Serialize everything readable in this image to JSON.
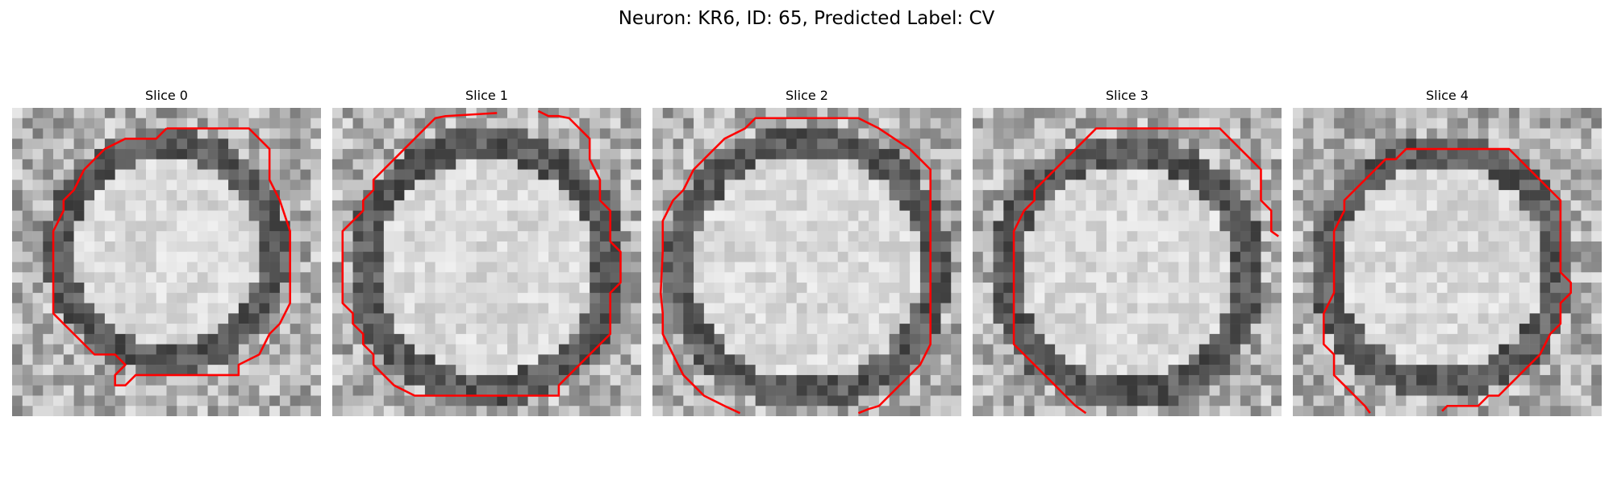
{
  "figure": {
    "title": "Neuron: KR6, ID: 65, Predicted Label: CV"
  },
  "colors": {
    "contour": "#ff0000",
    "background": "#ffffff"
  },
  "image_grid": 30,
  "panels": [
    {
      "title": "Slice 0",
      "seed": 11,
      "blob": {
        "cx": 15,
        "cy": 14,
        "r": 10.5
      },
      "contour": [
        [
          15,
          2
        ],
        [
          23,
          2
        ],
        [
          25,
          4
        ],
        [
          25,
          7
        ],
        [
          26,
          9
        ],
        [
          27,
          12
        ],
        [
          27,
          19
        ],
        [
          26,
          21
        ],
        [
          25,
          22
        ],
        [
          24,
          24
        ],
        [
          22,
          25
        ],
        [
          22,
          26
        ],
        [
          12,
          26
        ],
        [
          11,
          27
        ],
        [
          10,
          27
        ],
        [
          10,
          26
        ],
        [
          11,
          25
        ],
        [
          10,
          24
        ],
        [
          8,
          24
        ],
        [
          6,
          22
        ],
        [
          5,
          21
        ],
        [
          4,
          20
        ],
        [
          4,
          12
        ],
        [
          5,
          10
        ],
        [
          5,
          9
        ],
        [
          6,
          8
        ],
        [
          7,
          6
        ],
        [
          8,
          5
        ],
        [
          9,
          4
        ],
        [
          11,
          3
        ],
        [
          14,
          3
        ],
        [
          15,
          2
        ]
      ]
    },
    {
      "title": "Slice 1",
      "seed": 23,
      "blob": {
        "cx": 15,
        "cy": 15.5,
        "r": 12
      },
      "contour": [
        [
          16,
          0.5
        ],
        [
          11,
          0.8
        ],
        [
          10,
          1
        ],
        [
          9,
          2
        ],
        [
          8,
          3
        ],
        [
          7,
          4
        ],
        [
          5,
          6
        ],
        [
          4,
          7
        ],
        [
          4,
          8
        ],
        [
          3,
          9
        ],
        [
          3,
          10
        ],
        [
          2,
          11
        ],
        [
          1,
          12
        ],
        [
          1,
          15
        ],
        [
          1,
          18
        ],
        [
          1,
          19
        ],
        [
          2,
          20
        ],
        [
          2,
          21
        ],
        [
          3,
          22
        ],
        [
          3,
          23
        ],
        [
          4,
          24
        ],
        [
          4,
          25
        ],
        [
          5,
          26
        ],
        [
          6,
          27
        ],
        [
          8,
          28
        ],
        [
          22,
          28
        ],
        [
          22,
          27
        ],
        [
          23,
          26
        ],
        [
          24,
          25
        ],
        [
          25,
          24
        ],
        [
          26,
          23
        ],
        [
          27,
          22
        ],
        [
          27,
          18
        ],
        [
          28,
          17
        ],
        [
          28,
          14
        ],
        [
          27,
          13
        ],
        [
          27,
          10
        ],
        [
          26,
          9
        ],
        [
          26,
          7
        ],
        [
          25,
          5
        ],
        [
          25,
          3
        ],
        [
          23,
          1
        ],
        [
          22,
          0.8
        ],
        [
          21,
          0.8
        ],
        [
          20,
          0.3
        ]
      ]
    },
    {
      "title": "Slice 2",
      "seed": 37,
      "blob": {
        "cx": 15,
        "cy": 15.5,
        "r": 12.5
      },
      "contour": [
        [
          8.5,
          29.7
        ],
        [
          7,
          29
        ],
        [
          5,
          28
        ],
        [
          4,
          27
        ],
        [
          3,
          26
        ],
        [
          2,
          24
        ],
        [
          1,
          22
        ],
        [
          1,
          20
        ],
        [
          0.8,
          18
        ],
        [
          1,
          14
        ],
        [
          1,
          11
        ],
        [
          2,
          9
        ],
        [
          3,
          8
        ],
        [
          4,
          6
        ],
        [
          6,
          4
        ],
        [
          7,
          3
        ],
        [
          9,
          2
        ],
        [
          10,
          1
        ],
        [
          20,
          1
        ],
        [
          22,
          2
        ],
        [
          25,
          4
        ],
        [
          26,
          5
        ],
        [
          27,
          6
        ],
        [
          27,
          9
        ],
        [
          27,
          20
        ],
        [
          27,
          23
        ],
        [
          26,
          25
        ],
        [
          25,
          26
        ],
        [
          24,
          27
        ],
        [
          23,
          28
        ],
        [
          22,
          29
        ],
        [
          21,
          29.3
        ],
        [
          20,
          29.7
        ]
      ]
    },
    {
      "title": "Slice 3",
      "seed": 51,
      "blob": {
        "cx": 15,
        "cy": 16,
        "r": 12
      },
      "contour": [
        [
          11,
          29.7
        ],
        [
          10,
          29
        ],
        [
          9,
          28
        ],
        [
          8,
          27
        ],
        [
          7,
          26
        ],
        [
          6,
          25
        ],
        [
          5,
          24
        ],
        [
          4,
          23
        ],
        [
          4,
          21
        ],
        [
          4,
          19
        ],
        [
          4,
          14
        ],
        [
          4,
          12
        ],
        [
          5,
          10
        ],
        [
          6,
          9
        ],
        [
          6,
          8
        ],
        [
          7,
          7
        ],
        [
          8,
          6
        ],
        [
          9,
          5
        ],
        [
          10,
          4
        ],
        [
          11,
          3
        ],
        [
          12,
          2
        ],
        [
          24,
          2
        ],
        [
          25,
          3
        ],
        [
          26,
          4
        ],
        [
          27,
          5
        ],
        [
          28,
          6
        ],
        [
          28,
          9
        ],
        [
          29,
          10
        ],
        [
          29,
          12
        ],
        [
          29.7,
          12.5
        ]
      ]
    },
    {
      "title": "Slice 4",
      "seed": 67,
      "blob": {
        "cx": 14.5,
        "cy": 15.5,
        "r": 11.5
      },
      "contour": [
        [
          7.5,
          29.7
        ],
        [
          7,
          29
        ],
        [
          6,
          28
        ],
        [
          5,
          27
        ],
        [
          4,
          26
        ],
        [
          4,
          25
        ],
        [
          4,
          24
        ],
        [
          3,
          23
        ],
        [
          3,
          21
        ],
        [
          3,
          20
        ],
        [
          4,
          18
        ],
        [
          4,
          14
        ],
        [
          4,
          12
        ],
        [
          5,
          10
        ],
        [
          5,
          9
        ],
        [
          6,
          8
        ],
        [
          7,
          7
        ],
        [
          8,
          6
        ],
        [
          9,
          5
        ],
        [
          10,
          5
        ],
        [
          11,
          4
        ],
        [
          21,
          4
        ],
        [
          22,
          5
        ],
        [
          23,
          6
        ],
        [
          24,
          7
        ],
        [
          25,
          8
        ],
        [
          26,
          9
        ],
        [
          26,
          10
        ],
        [
          26,
          11
        ],
        [
          26,
          16
        ],
        [
          27,
          17
        ],
        [
          27,
          18
        ],
        [
          26,
          19
        ],
        [
          26,
          21
        ],
        [
          25,
          22
        ],
        [
          24,
          24
        ],
        [
          23,
          25
        ],
        [
          22,
          26
        ],
        [
          21,
          27
        ],
        [
          20,
          28
        ],
        [
          19,
          28
        ],
        [
          18,
          29
        ],
        [
          17,
          29
        ],
        [
          15,
          29
        ],
        [
          14.5,
          29.5
        ]
      ]
    }
  ]
}
